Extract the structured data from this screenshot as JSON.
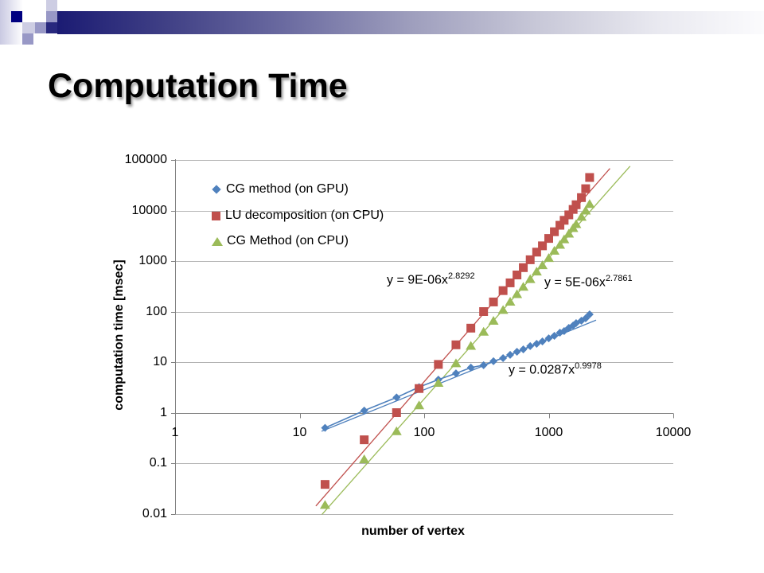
{
  "slide": {
    "title": "Computation Time"
  },
  "chart_data": {
    "type": "scatter",
    "title": "",
    "xlabel": "number of vertex",
    "ylabel": "computation time [msec]",
    "x_scale": "log",
    "y_scale": "log",
    "x_range": [
      1,
      10000
    ],
    "y_range": [
      0.01,
      100000
    ],
    "x_ticks": [
      "1",
      "10",
      "100",
      "1000",
      "10000"
    ],
    "y_ticks": [
      "100000",
      "10000",
      "1000",
      "100",
      "10",
      "1",
      "0.1",
      "0.01"
    ],
    "grid": "horizontal-only",
    "legend_position": "inside-top-left",
    "theme": {
      "grid": "#b3b3b3",
      "axis": "#808080",
      "text": "#000000"
    },
    "x": [
      16,
      33,
      60,
      91,
      130,
      180,
      237,
      300,
      360,
      430,
      490,
      556,
      625,
      710,
      800,
      890,
      1000,
      1110,
      1230,
      1330,
      1450,
      1570,
      1660,
      1830,
      1980,
      2130
    ],
    "series": [
      {
        "name": "CG method (on GPU)",
        "marker": "diamond",
        "color": "#4f81bd",
        "line": "solid",
        "values": [
          0.5,
          1.1,
          2.0,
          3.2,
          4.5,
          6.0,
          7.8,
          8.7,
          10.4,
          12.0,
          13.9,
          16.0,
          17.9,
          20.7,
          23.0,
          25.7,
          29.6,
          33.1,
          38.3,
          41.1,
          47.5,
          53.0,
          59.1,
          65.9,
          73.5,
          88
        ],
        "trendline": {
          "label_prefix": "y = 0.0287x",
          "exponent": "0.9978",
          "a": 0.0287,
          "b": 0.9978,
          "x_start": 15,
          "x_end": 2400
        }
      },
      {
        "name": "LU decomposition (on CPU)",
        "marker": "square",
        "color": "#c0504d",
        "line": "none",
        "values": [
          0.038,
          0.29,
          1.0,
          3.0,
          9.0,
          22,
          47,
          100,
          155,
          260,
          370,
          530,
          740,
          1060,
          1500,
          2000,
          2800,
          3800,
          5100,
          6400,
          8200,
          10500,
          13000,
          18000,
          27000,
          45000
        ],
        "trendline": {
          "label_prefix": "y = 9E-06x",
          "exponent": "2.8292",
          "a": 9e-06,
          "b": 2.8292,
          "x_start": 13.5,
          "x_end": 3100
        }
      },
      {
        "name": "CG Method (on CPU)",
        "marker": "triangle",
        "color": "#9bbb59",
        "line": "none",
        "values": [
          0.015,
          0.12,
          0.43,
          1.4,
          3.9,
          9.5,
          21,
          40,
          66,
          108,
          157,
          222,
          310,
          440,
          620,
          830,
          1150,
          1600,
          2100,
          2700,
          3500,
          4500,
          5400,
          7500,
          10000,
          13500
        ],
        "trendline": {
          "label_prefix": "y = 5E-06x",
          "exponent": "2.7861",
          "a": 5e-06,
          "b": 2.7861,
          "x_start": 14,
          "x_end": 4500
        }
      }
    ],
    "decor_colors": {
      "navy_square": "#000080",
      "bar_gradient_start": "#1b1b73",
      "bar_gradient_end": "#fbfbfd",
      "light_square": "#cdcde3",
      "medium_square": "#9898c6",
      "dark_square": "#28287e"
    }
  }
}
